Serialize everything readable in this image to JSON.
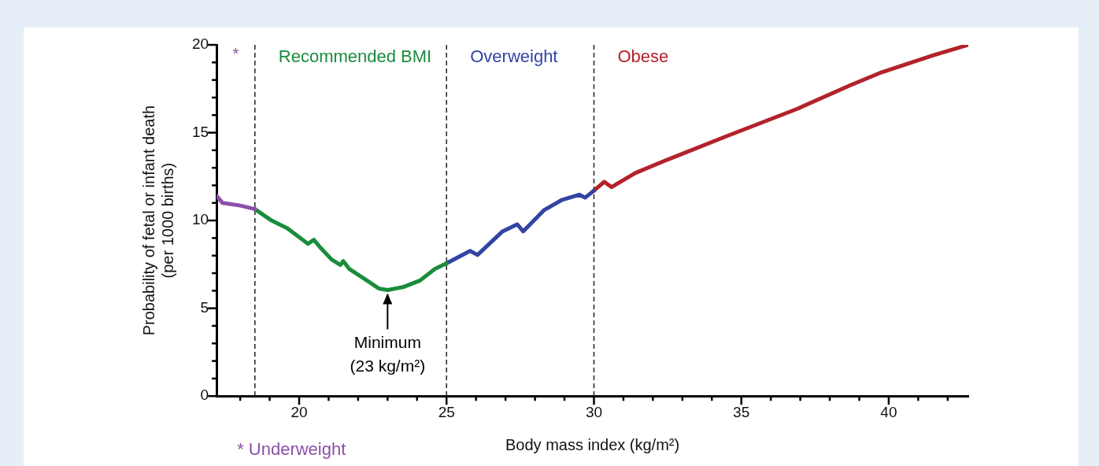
{
  "chart_data": {
    "type": "line",
    "xlabel": "Body mass index (kg/m²)",
    "ylabel": "Probability of fetal or infant death\n(per 1000 births)",
    "xlim": [
      17.2,
      42.7
    ],
    "xticks": [
      {
        "value": 18,
        "label": null
      },
      {
        "value": 19,
        "label": null
      },
      20,
      {
        "value": 21,
        "label": null
      },
      {
        "value": 22,
        "label": null
      },
      {
        "value": 23,
        "label": null
      },
      {
        "value": 24,
        "label": null
      },
      25,
      {
        "value": 26,
        "label": null
      },
      {
        "value": 27,
        "label": null
      },
      {
        "value": 28,
        "label": null
      },
      {
        "value": 29,
        "label": null
      },
      30,
      {
        "value": 31,
        "label": null
      },
      {
        "value": 32,
        "label": null
      },
      {
        "value": 33,
        "label": null
      },
      {
        "value": 34,
        "label": null
      },
      35,
      {
        "value": 36,
        "label": null
      },
      {
        "value": 37,
        "label": null
      },
      {
        "value": 38,
        "label": null
      },
      {
        "value": 39,
        "label": null
      },
      40,
      {
        "value": 41,
        "label": null
      },
      {
        "value": 42,
        "label": null
      }
    ],
    "ylim": [
      0,
      20
    ],
    "yticks": [
      0,
      {
        "value": 1,
        "label": null
      },
      {
        "value": 2,
        "label": null
      },
      {
        "value": 3,
        "label": null
      },
      {
        "value": 4,
        "label": null
      },
      5,
      {
        "value": 6,
        "label": null
      },
      {
        "value": 7,
        "label": null
      },
      {
        "value": 8,
        "label": null
      },
      {
        "value": 9,
        "label": null
      },
      10,
      {
        "value": 11,
        "label": null
      },
      {
        "value": 12,
        "label": null
      },
      {
        "value": 13,
        "label": null
      },
      {
        "value": 14,
        "label": null
      },
      15,
      {
        "value": 16,
        "label": null
      },
      {
        "value": 17,
        "label": null
      },
      {
        "value": 18,
        "label": null
      },
      {
        "value": 19,
        "label": null
      },
      20
    ],
    "grid": false,
    "legend": false,
    "marker": "none",
    "line_style": "solid",
    "series": [
      {
        "name": "* Underweight",
        "color": "#8b4fa8",
        "x": [
          17.2,
          17.4,
          18.0,
          18.5
        ],
        "values": [
          11.4,
          11.0,
          10.85,
          10.65
        ]
      },
      {
        "name": "Recommended BMI",
        "color": "#1a8c3c",
        "x": [
          18.5,
          19.06,
          19.6,
          20.3,
          20.5,
          20.7,
          21.1,
          21.4,
          21.5,
          21.7,
          22.3,
          22.7,
          23.0,
          23.55,
          24.1,
          24.6,
          25.0
        ],
        "values": [
          10.65,
          10.0,
          9.56,
          8.67,
          8.9,
          8.49,
          7.78,
          7.47,
          7.69,
          7.24,
          6.58,
          6.13,
          6.04,
          6.22,
          6.58,
          7.24,
          7.56
        ]
      },
      {
        "name": "Overweight",
        "color": "#3345a3",
        "x": [
          25.0,
          25.8,
          26.05,
          26.9,
          27.4,
          27.6,
          28.3,
          28.9,
          29.5,
          29.7,
          30.0
        ],
        "values": [
          7.56,
          8.27,
          8.04,
          9.38,
          9.78,
          9.38,
          10.58,
          11.16,
          11.47,
          11.3,
          11.7
        ]
      },
      {
        "name": "Obese",
        "color": "#b3222a",
        "x": [
          30.0,
          30.35,
          30.6,
          31.4,
          32.4,
          33.0,
          34.5,
          36.9,
          38.7,
          39.7,
          41.5,
          42.7
        ],
        "values": [
          11.7,
          12.2,
          11.9,
          12.7,
          13.4,
          13.8,
          14.8,
          16.36,
          17.7,
          18.4,
          19.4,
          20.0
        ]
      }
    ],
    "ref_lines": [
      {
        "axis": "x",
        "value": 18.5,
        "line_style": "dashed"
      },
      {
        "axis": "x",
        "value": 25,
        "line_style": "dashed"
      },
      {
        "axis": "x",
        "value": 30,
        "line_style": "dashed"
      }
    ],
    "annotations": [
      "*",
      {
        "text": "Minimum\n(23 kg/m²)",
        "x": 23,
        "y": 6.04
      }
    ]
  }
}
